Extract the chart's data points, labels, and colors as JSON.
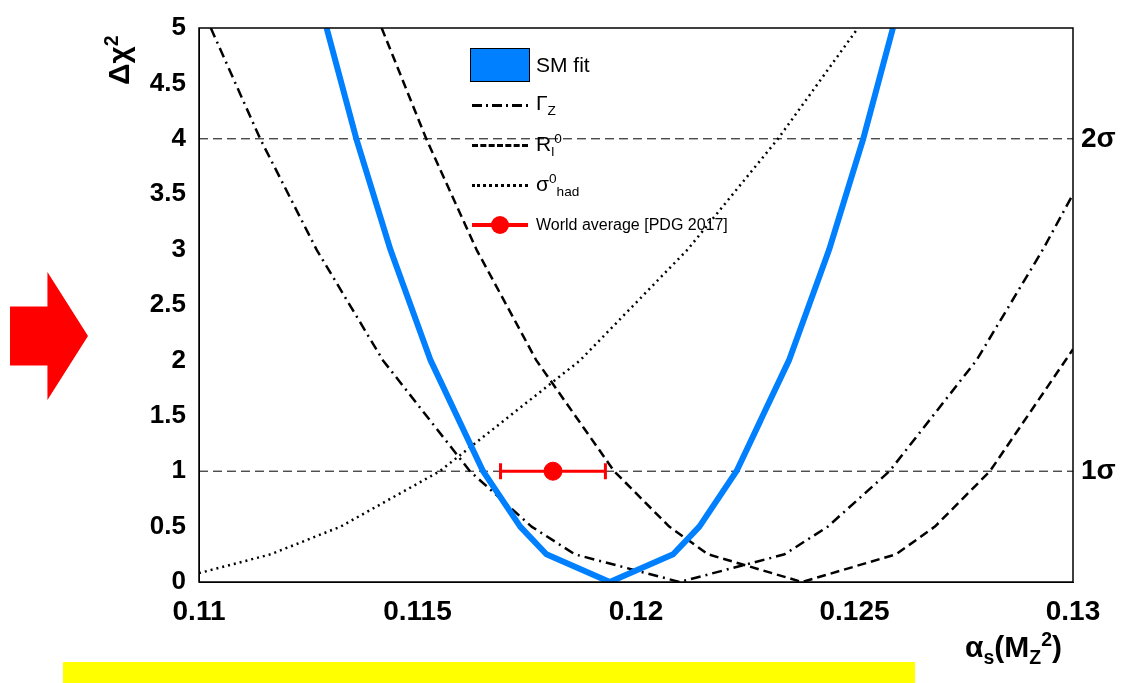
{
  "chart_data": {
    "type": "line",
    "xlabel": "α$_{s}$(M$_{Z}$$^{2}$)",
    "ylabel": "Δχ$^{2}$",
    "xlim": [
      0.11,
      0.13
    ],
    "xticks": [
      0.11,
      0.115,
      0.12,
      0.125,
      0.13
    ],
    "ylim": [
      0,
      5
    ],
    "yticks": [
      0,
      0.5,
      1,
      1.5,
      2,
      2.5,
      3,
      3.5,
      4,
      4.5,
      5
    ],
    "grid": false,
    "legend": "top",
    "marker": "none",
    "ref_lines": [
      {
        "axis": "y",
        "value": 1,
        "label": "1σ",
        "line_style": "dashed",
        "color": "#000000"
      },
      {
        "axis": "y",
        "value": 4,
        "label": "2σ",
        "line_style": "dashed",
        "color": "#000000"
      }
    ],
    "series": [
      {
        "name": "SM fit",
        "color": "#0080ff",
        "line_style": "solid",
        "x": [
          0.11292,
          0.1136,
          0.11438,
          0.1153,
          0.1165,
          0.11735,
          0.11795,
          0.1194,
          0.12085,
          0.12145,
          0.1223,
          0.1235,
          0.12442,
          0.1252,
          0.12588
        ],
        "values": [
          5,
          4,
          3,
          2,
          1,
          0.5,
          0.25,
          0,
          0.25,
          0.5,
          1,
          2,
          3,
          4,
          5
        ]
      },
      {
        "name": "Γ$_{Z}$",
        "color": "#000000",
        "line_style": "dashdot",
        "x": [
          0.11027,
          0.1114,
          0.11269,
          0.11421,
          0.1162,
          0.11761,
          0.1186,
          0.121,
          0.1234,
          0.12439,
          0.1258,
          0.12779,
          0.12931,
          0.13
        ],
        "values": [
          5,
          4,
          3,
          2,
          1,
          0.5,
          0.25,
          0,
          0.25,
          0.5,
          1,
          2,
          3,
          3.5
        ]
      },
      {
        "name": "R$_{l}$$^{0}$",
        "color": "#000000",
        "line_style": "dashed",
        "x": [
          0.11418,
          0.1152,
          0.11635,
          0.11772,
          0.1195,
          0.12076,
          0.12165,
          0.1238,
          0.12595,
          0.12684,
          0.1281,
          0.13
        ],
        "values": [
          5,
          4,
          3,
          2,
          1,
          0.5,
          0.25,
          0,
          0.25,
          0.5,
          1,
          2.1
        ]
      },
      {
        "name": "σ$^{0}$$_{had}$",
        "color": "#000000",
        "line_style": "dotted",
        "x": [
          0.11,
          0.11164,
          0.11324,
          0.11551,
          0.11872,
          0.12118,
          0.12325,
          0.12508
        ],
        "values": [
          0.08,
          0.25,
          0.5,
          1,
          2,
          3,
          4,
          5
        ]
      },
      {
        "name": "World average [PDG 2017]",
        "type": "scatter",
        "color": "#ff0000",
        "marker": "circle",
        "x": [
          0.1181
        ],
        "values": [
          1
        ],
        "xerrors": [
          0.0012
        ]
      }
    ]
  }
}
